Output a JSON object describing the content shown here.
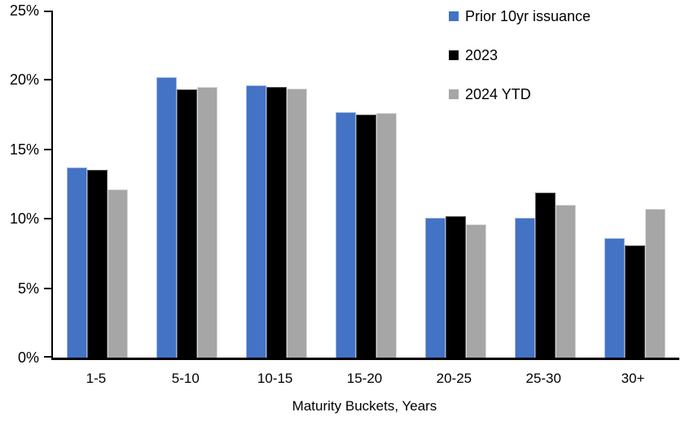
{
  "chart_data": {
    "type": "bar",
    "categories": [
      "1-5",
      "5-10",
      "10-15",
      "15-20",
      "20-25",
      "25-30",
      "30+"
    ],
    "series": [
      {
        "name": "Prior 10yr issuance",
        "color": "#4472C4",
        "border_color": "#9DB9E4",
        "values": [
          13.7,
          20.2,
          19.6,
          17.7,
          10.1,
          10.1,
          8.6
        ]
      },
      {
        "name": "2023",
        "color": "#000000",
        "border_color": "#595959",
        "values": [
          13.5,
          19.3,
          19.5,
          17.5,
          10.2,
          11.9,
          8.1
        ]
      },
      {
        "name": "2024 YTD",
        "color": "#A6A6A6",
        "border_color": "#D9D9D9",
        "values": [
          12.1,
          19.5,
          19.4,
          17.6,
          9.6,
          11.0,
          10.7
        ]
      }
    ],
    "title": "",
    "xlabel": "Maturity Buckets, Years",
    "ylabel": "",
    "ylim": [
      0,
      25
    ],
    "yticks": [
      {
        "v": 0,
        "label": "0%"
      },
      {
        "v": 5,
        "label": "5%"
      },
      {
        "v": 10,
        "label": "10%"
      },
      {
        "v": 15,
        "label": "15%"
      },
      {
        "v": 20,
        "label": "20%"
      },
      {
        "v": 25,
        "label": "25%"
      }
    ],
    "grid": false,
    "legend_position": "top-right",
    "axis_color": "#000000"
  }
}
